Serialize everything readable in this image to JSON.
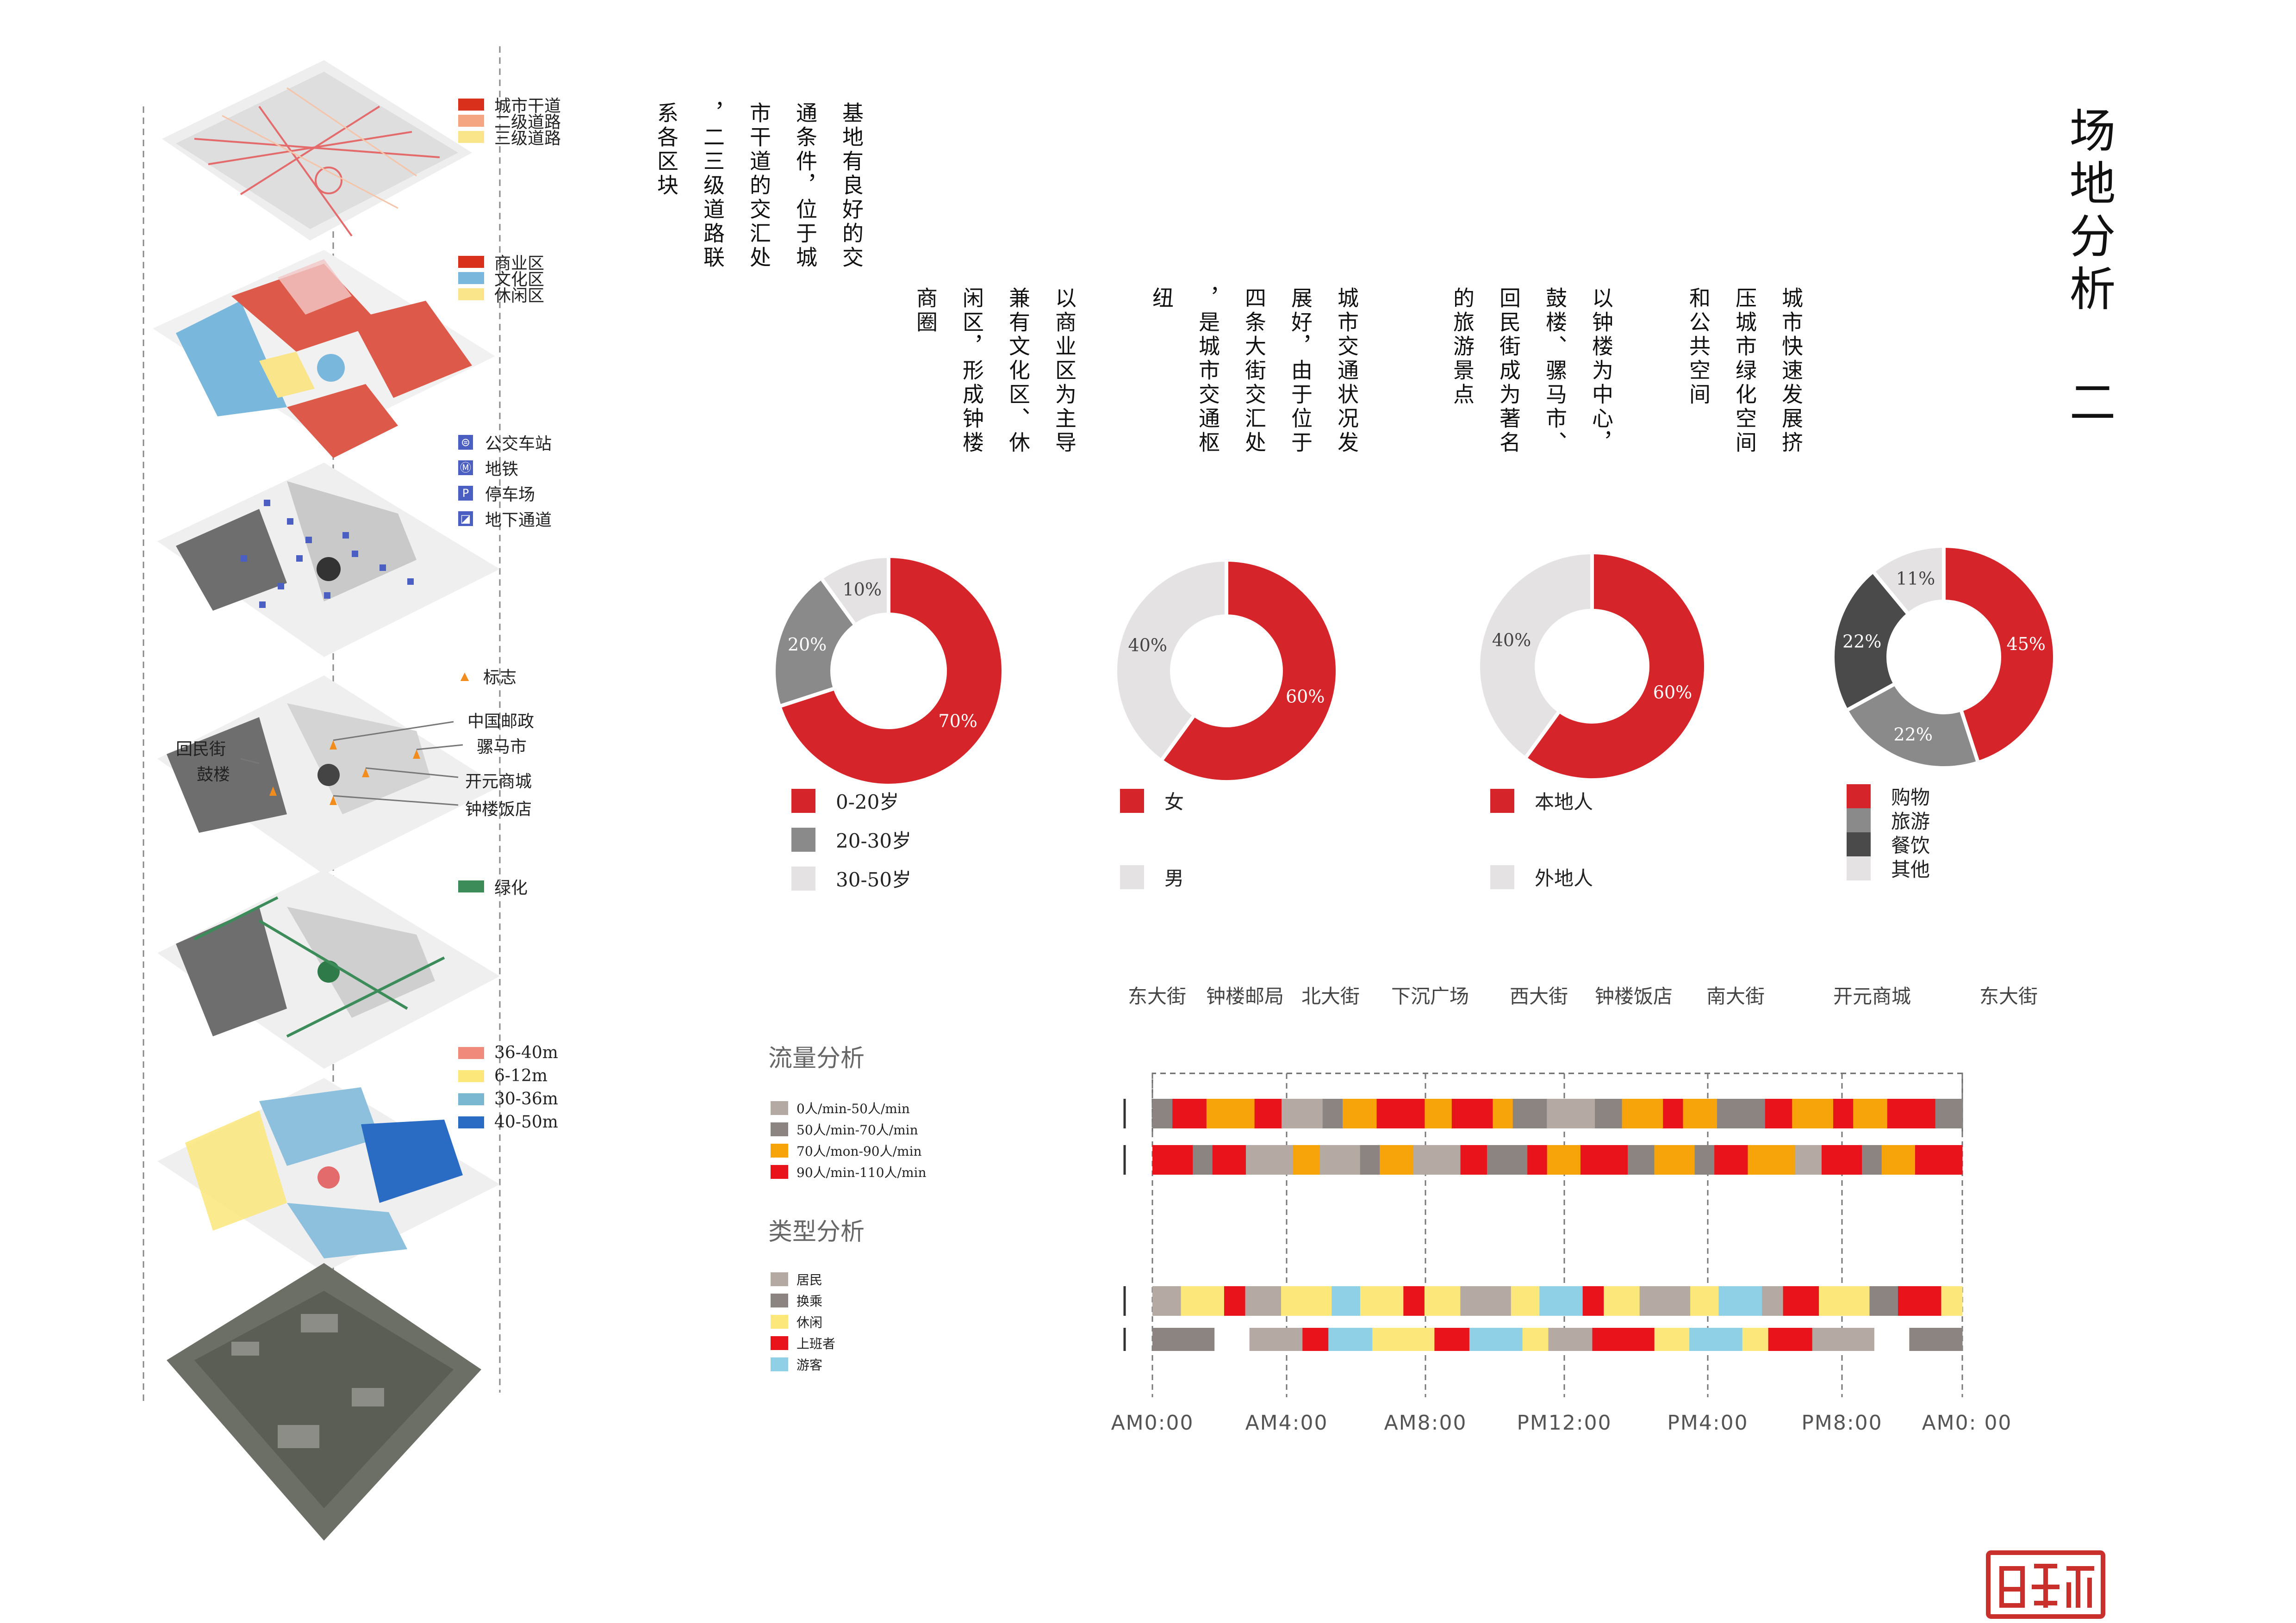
{
  "title": "场地分析 二",
  "layers": [
    {
      "legend": [
        {
          "label": "城市干道",
          "color": "#d9301c"
        },
        {
          "label": "二级道路",
          "color": "#f4a582"
        },
        {
          "label": "三级道路",
          "color": "#fbe58a"
        }
      ]
    },
    {
      "legend": [
        {
          "label": "商业区",
          "color": "#d9301c"
        },
        {
          "label": "文化区",
          "color": "#7ab7dc"
        },
        {
          "label": "休闲区",
          "color": "#fbe58a"
        }
      ]
    },
    {
      "legend": [
        {
          "label": "公交车站",
          "icon": "bus-icon"
        },
        {
          "label": "地铁",
          "icon": "subway-icon"
        },
        {
          "label": "停车场",
          "icon": "parking-icon"
        },
        {
          "label": "地下通道",
          "icon": "underpass-icon"
        }
      ]
    },
    {
      "legend": [
        {
          "label": "标志",
          "icon": "landmark-icon"
        }
      ],
      "callouts": [
        "中国邮政",
        "骡马市",
        "开元商城",
        "钟楼饭店",
        "回民街",
        "鼓楼"
      ]
    },
    {
      "legend": [
        {
          "label": "绿化",
          "color": "#3c8c5a"
        }
      ]
    },
    {
      "legend": [
        {
          "label": "36-40m",
          "color": "#f08a7a"
        },
        {
          "label": "6-12m",
          "color": "#fbe77a"
        },
        {
          "label": "30-36m",
          "color": "#7ab7d0"
        },
        {
          "label": "40-50m",
          "color": "#2a6bc4"
        }
      ]
    }
  ],
  "texts": [
    "基地有良好的交通条件，位于城市干道的交汇处，二三级道路联系各区块",
    "城市快速发展挤压城市绿化空间和公共空间",
    "以钟楼为中心，鼓楼、骡马市、回民街成为著名的旅游景点",
    "城市交通状况发展好，由于位于四条大街交汇处，是城市交通枢纽",
    "以商业区为主导兼有文化区、休闲区，形成钟楼商圈"
  ],
  "text_columns": [
    [
      "基地有良好的交",
      "通条件，位于城",
      "市干道的交汇处",
      "，二三级道路联",
      "系各区块"
    ],
    [
      "城市快速发展挤",
      "压城市绿化空间",
      "和公共空间"
    ],
    [
      "以钟楼为中心，",
      "鼓楼、骡马市、",
      "回民街成为著名",
      "的旅游景点"
    ],
    [
      "城市交通状况发",
      "展好，由于位于",
      "四条大街交汇处",
      "，是城市交通枢",
      "纽"
    ],
    [
      "以商业区为主导",
      "兼有文化区、休",
      "闲区，形成钟楼",
      "商圈"
    ]
  ],
  "chart_data": [
    {
      "type": "pie",
      "donut": true,
      "title": "",
      "categories": [
        "0-20岁",
        "20-30岁",
        "30-50岁"
      ],
      "values": [
        70,
        20,
        10
      ],
      "labels": [
        "70%",
        "20%",
        "10%"
      ],
      "colors": [
        "#d6252a",
        "#8a8a8a",
        "#e4e2e3"
      ]
    },
    {
      "type": "pie",
      "donut": true,
      "title": "",
      "categories": [
        "女",
        "男"
      ],
      "values": [
        60,
        40
      ],
      "labels": [
        "60%",
        "40%"
      ],
      "colors": [
        "#d6252a",
        "#e4e2e3"
      ]
    },
    {
      "type": "pie",
      "donut": true,
      "title": "",
      "categories": [
        "本地人",
        "外地人"
      ],
      "values": [
        60,
        40
      ],
      "labels": [
        "60%",
        "40%"
      ],
      "colors": [
        "#d6252a",
        "#e4e2e3"
      ]
    },
    {
      "type": "pie",
      "donut": true,
      "title": "",
      "categories": [
        "购物",
        "旅游",
        "餐饮",
        "其他"
      ],
      "values": [
        45,
        22,
        22,
        11
      ],
      "labels": [
        "45%",
        "22%",
        "22%",
        "11%"
      ],
      "colors": [
        "#d6252a",
        "#8a8a8a",
        "#4a4a4a",
        "#e4e2e3"
      ]
    },
    {
      "type": "table",
      "title": "流量分析",
      "legend": [
        {
          "label": "0人/min-50人/min",
          "color": "#b5aaa3"
        },
        {
          "label": "50人/min-70人/min",
          "color": "#8b8480"
        },
        {
          "label": "70人/mon-90人/min",
          "color": "#f7a30a"
        },
        {
          "label": "90人/min-110人/min",
          "color": "#e8131b"
        }
      ],
      "rows": [
        [
          1,
          3,
          2,
          2,
          1,
          0,
          2,
          1,
          3,
          2,
          2,
          3,
          1,
          0,
          2,
          2,
          2,
          3,
          0,
          1,
          1,
          3,
          2,
          2,
          3,
          1,
          2,
          3,
          3,
          2,
          1
        ]
      ]
    },
    {
      "type": "table",
      "title": "类型分析",
      "legend": [
        {
          "label": "居民",
          "color": "#b5aaa3"
        },
        {
          "label": "换乘",
          "color": "#8b8480"
        },
        {
          "label": "休闲",
          "color": "#fbe77a"
        },
        {
          "label": "上班者",
          "color": "#e8131b"
        },
        {
          "label": "游客",
          "color": "#8fd0e6"
        }
      ]
    }
  ],
  "timeline": {
    "streets": [
      "东大街",
      "钟楼邮局",
      "北大街",
      "下沉广场",
      "西大街",
      "钟楼饭店",
      "南大街",
      "开元商城",
      "东大街"
    ],
    "times": [
      "AM0:00",
      "AM4:00",
      "AM8:00",
      "PM12:00",
      "PM4:00",
      "PM8:00",
      "AM0: 00"
    ],
    "flow_rows": [
      [
        "#8b8480",
        "#e8131b",
        "#f7a30a",
        "#e8131b",
        "#b5aaa3",
        "#8b8480",
        "#f7a30a",
        "#e8131b",
        "#f7a30a",
        "#e8131b",
        "#f7a30a",
        "#8b8480",
        "#b5aaa3",
        "#8b8480",
        "#f7a30a",
        "#e8131b",
        "#f7a30a",
        "#8b8480",
        "#e8131b",
        "#f7a30a",
        "#e8131b",
        "#f7a30a",
        "#e8131b",
        "#8b8480"
      ],
      [
        "#e8131b",
        "#8b8480",
        "#e8131b",
        "#b5aaa3",
        "#f7a30a",
        "#b5aaa3",
        "#8b8480",
        "#f7a30a",
        "#b5aaa3",
        "#e8131b",
        "#8b8480",
        "#e8131b",
        "#f7a30a",
        "#e8131b",
        "#8b8480",
        "#f7a30a",
        "#8b8480",
        "#e8131b",
        "#f7a30a",
        "#b5aaa3",
        "#e8131b",
        "#8b8480",
        "#f7a30a",
        "#e8131b"
      ]
    ],
    "type_rows": [
      [
        "#b5aaa3",
        "#fbe77a",
        "#e8131b",
        "#b5aaa3",
        "#fbe77a",
        "#8fd0e6",
        "#fbe77a",
        "#e8131b",
        "#fbe77a",
        "#b5aaa3",
        "#fbe77a",
        "#8fd0e6",
        "#e8131b",
        "#fbe77a",
        "#b5aaa3",
        "#fbe77a",
        "#8fd0e6",
        "#b5aaa3",
        "#e8131b",
        "#fbe77a",
        "#8b8480",
        "#e8131b",
        "#fbe77a"
      ],
      [
        "#8b8480",
        "#ffffff",
        "#b5aaa3",
        "#e8131b",
        "#8fd0e6",
        "#fbe77a",
        "#e8131b",
        "#8fd0e6",
        "#fbe77a",
        "#b5aaa3",
        "#e8131b",
        "#fbe77a",
        "#8fd0e6",
        "#fbe77a",
        "#e8131b",
        "#b5aaa3",
        "#ffffff",
        "#8b8480"
      ]
    ]
  },
  "stamp_text": "西安印"
}
